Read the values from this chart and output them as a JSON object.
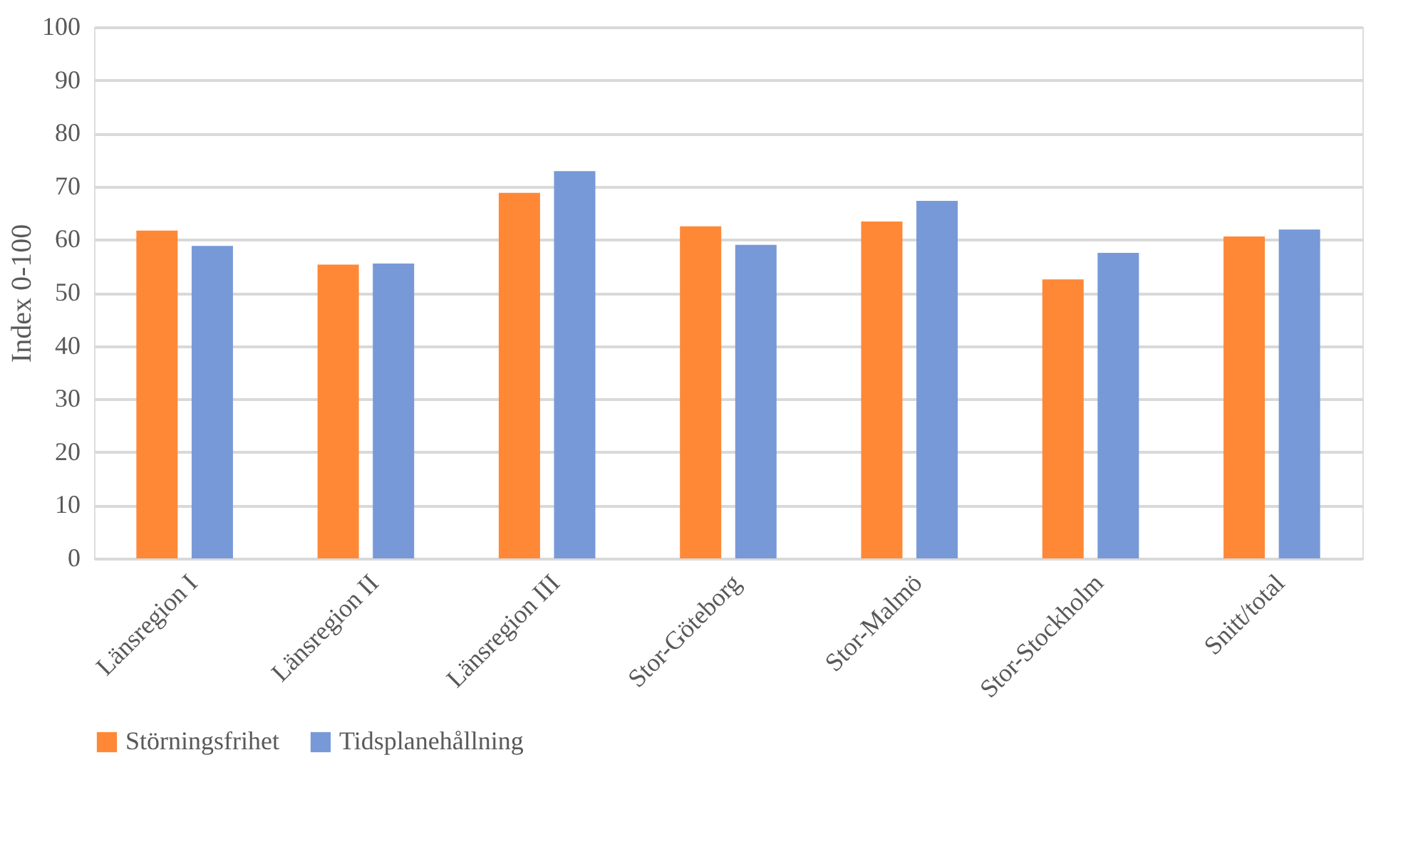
{
  "chart_data": {
    "type": "bar",
    "ylabel": "Index 0-100",
    "categories": [
      "Länsregion I",
      "Länsregion II",
      "Länsregion III",
      "Stor-Göteborg",
      "Stor-Malmö",
      "Stor-Stockholm",
      "Snitt/total"
    ],
    "series": [
      {
        "name": "Störningsfrihet",
        "color": "#ff8837",
        "values": [
          61.7,
          55.3,
          68.8,
          62.5,
          63.4,
          52.5,
          60.6
        ]
      },
      {
        "name": "Tidsplanehållning",
        "color": "#7799d8",
        "values": [
          58.8,
          55.5,
          72.9,
          59.0,
          67.3,
          57.5,
          61.9
        ]
      }
    ],
    "ylim": [
      0,
      100
    ],
    "yticks": [
      0,
      10,
      20,
      30,
      40,
      50,
      60,
      70,
      80,
      90,
      100
    ],
    "grid": "y",
    "legend": "bottom"
  }
}
